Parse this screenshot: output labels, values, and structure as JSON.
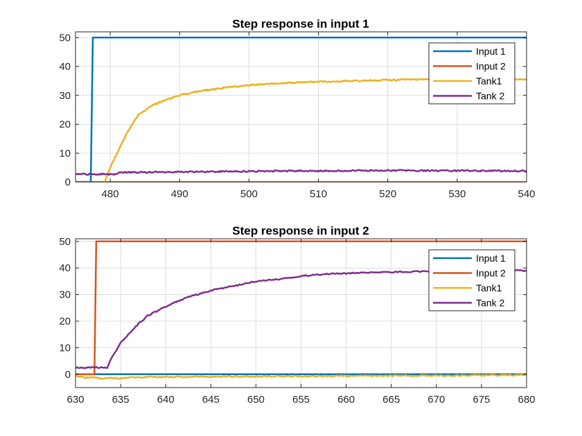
{
  "figure": {
    "background": "#ffffff"
  },
  "colors": {
    "input1": "#0072BD",
    "input2": "#D95319",
    "tank1": "#EDB120",
    "tank2": "#7E2F8E"
  },
  "chart_data": [
    {
      "type": "line",
      "title": "Step response in input 1",
      "xlabel": "",
      "ylabel": "",
      "xlim": [
        475,
        540
      ],
      "ylim": [
        0,
        52
      ],
      "xticks": [
        480,
        490,
        500,
        510,
        520,
        530,
        540
      ],
      "yticks": [
        0,
        10,
        20,
        30,
        40,
        50
      ],
      "grid": true,
      "legend_position": "top-right",
      "series": [
        {
          "name": "Input 1",
          "color": "#0072BD",
          "points": [
            [
              475,
              0
            ],
            [
              477.2,
              0
            ],
            [
              477.5,
              50
            ],
            [
              540,
              50
            ]
          ]
        },
        {
          "name": "Input 2",
          "color": "#D95319",
          "points": [
            [
              475,
              0
            ],
            [
              540,
              0
            ]
          ]
        },
        {
          "name": "Tank1",
          "color": "#EDB120",
          "points": [
            [
              478.8,
              0
            ],
            [
              479.2,
              0
            ],
            [
              480,
              5
            ],
            [
              481,
              10
            ],
            [
              482,
              15
            ],
            [
              483,
              19.5
            ],
            [
              484,
              23
            ],
            [
              486,
              26.5
            ],
            [
              488,
              28.5
            ],
            [
              490,
              30
            ],
            [
              493,
              31.5
            ],
            [
              496,
              32.5
            ],
            [
              500,
              33.5
            ],
            [
              505,
              34.3
            ],
            [
              510,
              34.8
            ],
            [
              515,
              35
            ],
            [
              520,
              35.3
            ],
            [
              525,
              35.5
            ],
            [
              530,
              35.6
            ],
            [
              535,
              35.6
            ],
            [
              540,
              35.6
            ]
          ]
        },
        {
          "name": "Tank 2",
          "color": "#7E2F8E",
          "points": [
            [
              475,
              2.7
            ],
            [
              478,
              2.7
            ],
            [
              480.5,
              2.7
            ],
            [
              481.5,
              3.3
            ],
            [
              485,
              3.4
            ],
            [
              490,
              3.5
            ],
            [
              500,
              3.7
            ],
            [
              510,
              3.9
            ],
            [
              520,
              4.0
            ],
            [
              530,
              3.9
            ],
            [
              540,
              3.8
            ]
          ]
        }
      ]
    },
    {
      "type": "line",
      "title": "Step response in input 2",
      "xlabel": "",
      "ylabel": "",
      "xlim": [
        630,
        680
      ],
      "ylim": [
        -5,
        51
      ],
      "xticks": [
        630,
        635,
        640,
        645,
        650,
        655,
        660,
        665,
        670,
        675,
        680
      ],
      "yticks": [
        0,
        10,
        20,
        30,
        40,
        50
      ],
      "grid": true,
      "legend_position": "top-right",
      "series": [
        {
          "name": "Input 1",
          "color": "#0072BD",
          "points": [
            [
              630,
              0
            ],
            [
              680,
              0
            ]
          ]
        },
        {
          "name": "Input 2",
          "color": "#D95319",
          "points": [
            [
              630,
              0
            ],
            [
              632.1,
              0
            ],
            [
              632.3,
              50
            ],
            [
              680,
              50
            ]
          ]
        },
        {
          "name": "Tank1",
          "color": "#EDB120",
          "points": [
            [
              630,
              -0.5
            ],
            [
              631,
              -1.2
            ],
            [
              633,
              -1.5
            ],
            [
              635,
              -1.5
            ],
            [
              636,
              -1.2
            ],
            [
              640,
              -1.0
            ],
            [
              645,
              -0.9
            ],
            [
              650,
              -0.8
            ],
            [
              660,
              -0.6
            ],
            [
              670,
              -0.5
            ],
            [
              680,
              -0.3
            ]
          ]
        },
        {
          "name": "Tank 2",
          "color": "#7E2F8E",
          "points": [
            [
              630,
              2.5
            ],
            [
              633.5,
              2.5
            ],
            [
              634,
              6
            ],
            [
              635,
              12
            ],
            [
              636,
              15.5
            ],
            [
              637,
              19
            ],
            [
              638,
              22
            ],
            [
              640,
              25.5
            ],
            [
              642,
              28.5
            ],
            [
              645,
              31.5
            ],
            [
              648,
              33.5
            ],
            [
              650,
              35
            ],
            [
              653,
              36
            ],
            [
              655,
              37
            ],
            [
              658,
              37.8
            ],
            [
              660,
              38
            ],
            [
              665,
              38.5
            ],
            [
              670,
              38.8
            ],
            [
              675,
              39
            ],
            [
              680,
              39
            ]
          ]
        }
      ]
    }
  ]
}
